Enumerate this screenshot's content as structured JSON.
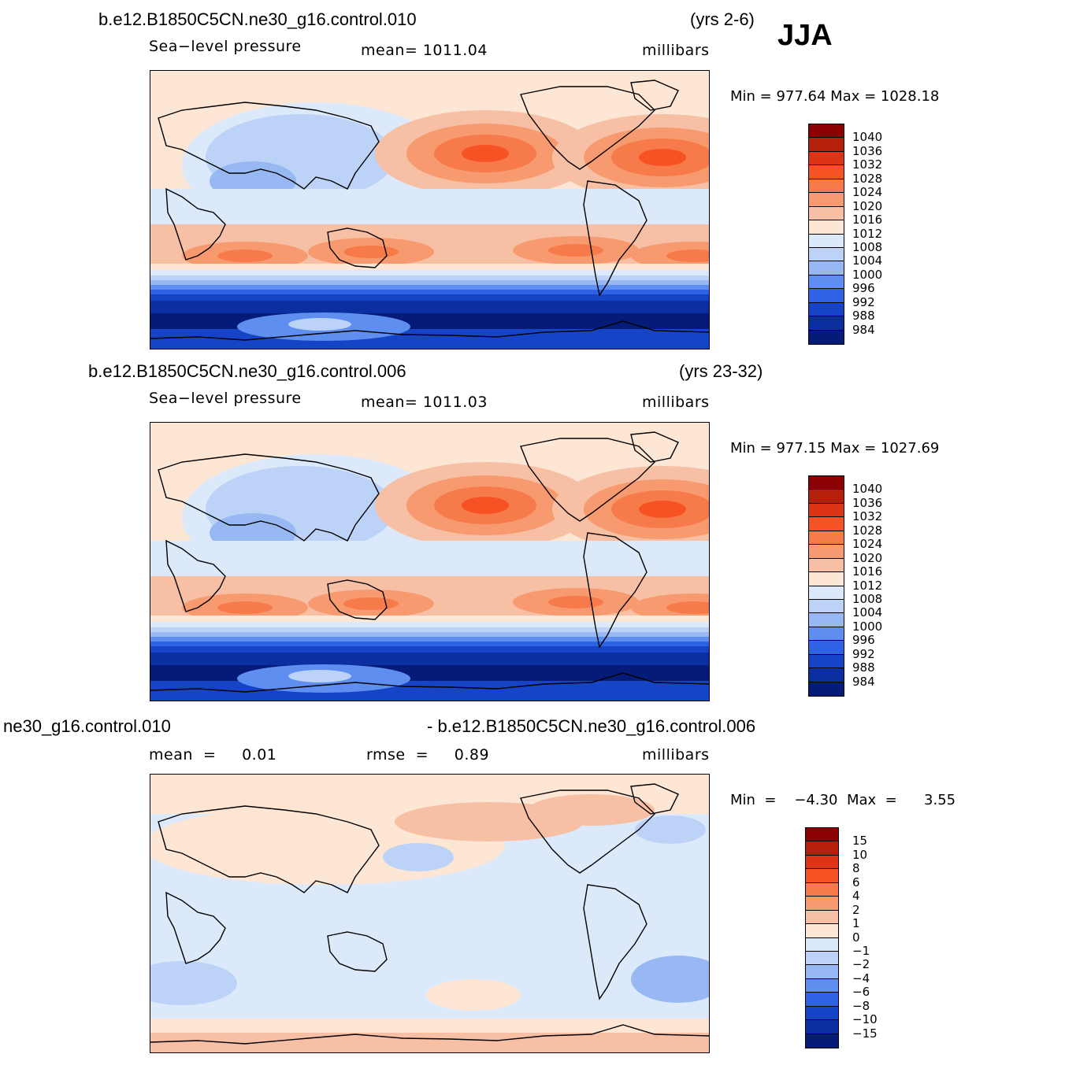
{
  "season": "JJA",
  "panels": [
    {
      "title_left": "b.e12.B1850C5CN.ne30_g16.control.010",
      "title_right": "(yrs 2-6)",
      "variable": "Sea−level pressure",
      "stat1": "mean=  1011.04",
      "stat2": "",
      "units": "millibars",
      "minmax": "Min  =  977.64  Max  =  1028.18",
      "colorbar": {
        "labels": [
          "1040",
          "1036",
          "1032",
          "1028",
          "1024",
          "1020",
          "1016",
          "1012",
          "1008",
          "1004",
          "1000",
          "996",
          "992",
          "988",
          "984"
        ],
        "colors": [
          "#8b0000",
          "#b5200c",
          "#dd3316",
          "#f65224",
          "#f77b4a",
          "#f79a6f",
          "#f7bfa4",
          "#fde6d4",
          "#dce9fb",
          "#bcd3f7",
          "#97b8f3",
          "#5e8ef0",
          "#2f63e5",
          "#1544c7",
          "#0b2ea0",
          "#061a78"
        ]
      },
      "map_type": "absolute"
    },
    {
      "title_left": "b.e12.B1850C5CN.ne30_g16.control.006",
      "title_right": "(yrs 23-32)",
      "variable": "Sea−level pressure",
      "stat1": "mean=  1011.03",
      "stat2": "",
      "units": "millibars",
      "minmax": "Min  =  977.15  Max  =  1027.69",
      "colorbar": {
        "labels": [
          "1040",
          "1036",
          "1032",
          "1028",
          "1024",
          "1020",
          "1016",
          "1012",
          "1008",
          "1004",
          "1000",
          "996",
          "992",
          "988",
          "984"
        ],
        "colors": [
          "#8b0000",
          "#b5200c",
          "#dd3316",
          "#f65224",
          "#f77b4a",
          "#f79a6f",
          "#f7bfa4",
          "#fde6d4",
          "#dce9fb",
          "#bcd3f7",
          "#97b8f3",
          "#5e8ef0",
          "#2f63e5",
          "#1544c7",
          "#0b2ea0",
          "#061a78"
        ]
      },
      "map_type": "absolute"
    },
    {
      "title_left": "ne30_g16.control.010",
      "title_right": "- b.e12.B1850C5CN.ne30_g16.control.006",
      "variable": "mean  =     0.01",
      "stat1": "rmse  =     0.89",
      "stat2": "",
      "units": "millibars",
      "minmax": "Min  =    −4.30  Max  =      3.55",
      "colorbar": {
        "labels": [
          "15",
          "10",
          "8",
          "6",
          "4",
          "2",
          "1",
          "0",
          "−1",
          "−2",
          "−4",
          "−6",
          "−8",
          "−10",
          "−15"
        ],
        "colors": [
          "#8b0000",
          "#b5200c",
          "#dd3316",
          "#f65224",
          "#f77b4a",
          "#f79a6f",
          "#f7bfa4",
          "#fde6d4",
          "#dce9fb",
          "#bcd3f7",
          "#97b8f3",
          "#5e8ef0",
          "#2f63e5",
          "#1544c7",
          "#0b2ea0",
          "#061a78"
        ]
      },
      "map_type": "difference"
    }
  ]
}
